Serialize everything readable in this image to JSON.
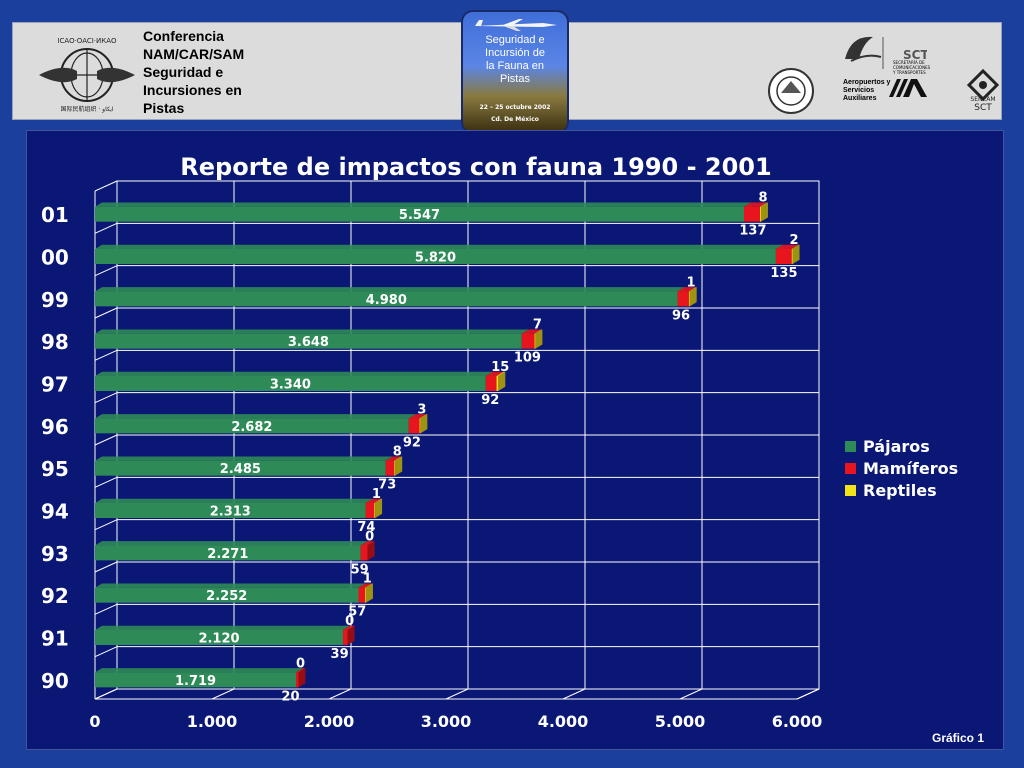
{
  "header": {
    "conference_lines": [
      "Conferencia",
      "NAM/CAR/SAM",
      "Seguridad e",
      "Incursiones en",
      "Pistas"
    ],
    "poster": {
      "title_lines": [
        "Seguridad e",
        "Incursión de",
        "la Fauna en",
        "Pistas"
      ],
      "date": "22 – 25 octubre 2002",
      "city": "Cd. De México"
    },
    "right_logos": {
      "sct_lines": [
        "SECRETARÍA DE",
        "COMUNICACIONES",
        "Y TRANSPORTES"
      ],
      "asa_lines": [
        "Aeropuertos y",
        "Servicios",
        "Auxiliares"
      ],
      "senam_lines": [
        "SENEAM",
        "SCT"
      ]
    }
  },
  "chart_data": {
    "type": "bar",
    "orientation": "horizontal",
    "stacked": true,
    "title": "Reporte de impactos con fauna  1990 - 2001",
    "categories": [
      "01",
      "00",
      "99",
      "98",
      "97",
      "96",
      "95",
      "94",
      "93",
      "92",
      "91",
      "90"
    ],
    "series": [
      {
        "name": "Pájaros",
        "values": [
          5547,
          5820,
          4980,
          3648,
          3340,
          2682,
          2485,
          2313,
          2271,
          2252,
          2120,
          1719
        ],
        "labels": [
          "5.547",
          "5.820",
          "4.980",
          "3.648",
          "3.340",
          "2.682",
          "2.485",
          "2.313",
          "2.271",
          "2.252",
          "2.120",
          "1.719"
        ]
      },
      {
        "name": "Mamíferos",
        "values": [
          137,
          135,
          96,
          109,
          92,
          92,
          73,
          74,
          59,
          57,
          39,
          20
        ],
        "labels": [
          "137",
          "135",
          "96",
          "109",
          "92",
          "92",
          "73",
          "74",
          "59",
          "57",
          "39",
          "20"
        ]
      },
      {
        "name": "Reptiles",
        "values": [
          8,
          2,
          1,
          7,
          15,
          3,
          8,
          1,
          0,
          1,
          0,
          0
        ],
        "labels": [
          "8",
          "2",
          "1",
          "7",
          "15",
          "3",
          "8",
          "1",
          "0",
          "1",
          "0",
          "0"
        ]
      }
    ],
    "xlim": [
      0,
      6000
    ],
    "x_ticks": [
      0,
      1000,
      2000,
      3000,
      4000,
      5000,
      6000
    ],
    "x_tick_labels": [
      "0",
      "1.000",
      "2.000",
      "3.000",
      "4.000",
      "5.000",
      "6.000"
    ],
    "grid": true,
    "legend_position": "right",
    "colors": {
      "Pájaros": "#2e8b57",
      "Mamíferos": "#e8141e",
      "Reptiles": "#f2e21a"
    }
  },
  "footer": {
    "label": "Gráfico 1"
  }
}
